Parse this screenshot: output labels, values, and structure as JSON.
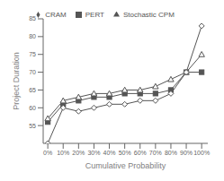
{
  "chart_data": {
    "type": "line",
    "xlabel": "Cumulative Probability",
    "ylabel": "Project Duration",
    "x": [
      0,
      10,
      20,
      30,
      40,
      50,
      60,
      70,
      80,
      90,
      100
    ],
    "xlim": [
      -3,
      104
    ],
    "xticks": [
      {
        "value": 0,
        "label": "0%"
      },
      {
        "value": 10,
        "label": "10%"
      },
      {
        "value": 20,
        "label": "20%"
      },
      {
        "value": 30,
        "label": "30%"
      },
      {
        "value": 40,
        "label": "40%"
      },
      {
        "value": 50,
        "label": "50%"
      },
      {
        "value": 60,
        "label": "60%"
      },
      {
        "value": 70,
        "label": "70%"
      },
      {
        "value": 80,
        "label": "80%"
      },
      {
        "value": 90,
        "label": "90%"
      },
      {
        "value": 100,
        "label": "100%"
      }
    ],
    "ylim": [
      50,
      85
    ],
    "yticks": [
      55,
      60,
      65,
      70,
      75,
      80,
      85
    ],
    "series": [
      {
        "name": "PERT",
        "color": "#555555",
        "marker": "square",
        "values": [
          56,
          61,
          62,
          63,
          63,
          64,
          64,
          64,
          65,
          70,
          70
        ]
      },
      {
        "name": "Stochastic CPM",
        "color": "#555555",
        "marker": "open triangle",
        "values": [
          57,
          62,
          63,
          64,
          64,
          65,
          65,
          66,
          68,
          70,
          75
        ]
      },
      {
        "name": "CRAM",
        "color": "#555555",
        "marker": "open diamond",
        "values": [
          50,
          60,
          59,
          60,
          61,
          61,
          62,
          62,
          64,
          70,
          83
        ]
      }
    ],
    "grid": false,
    "legend": "top"
  }
}
